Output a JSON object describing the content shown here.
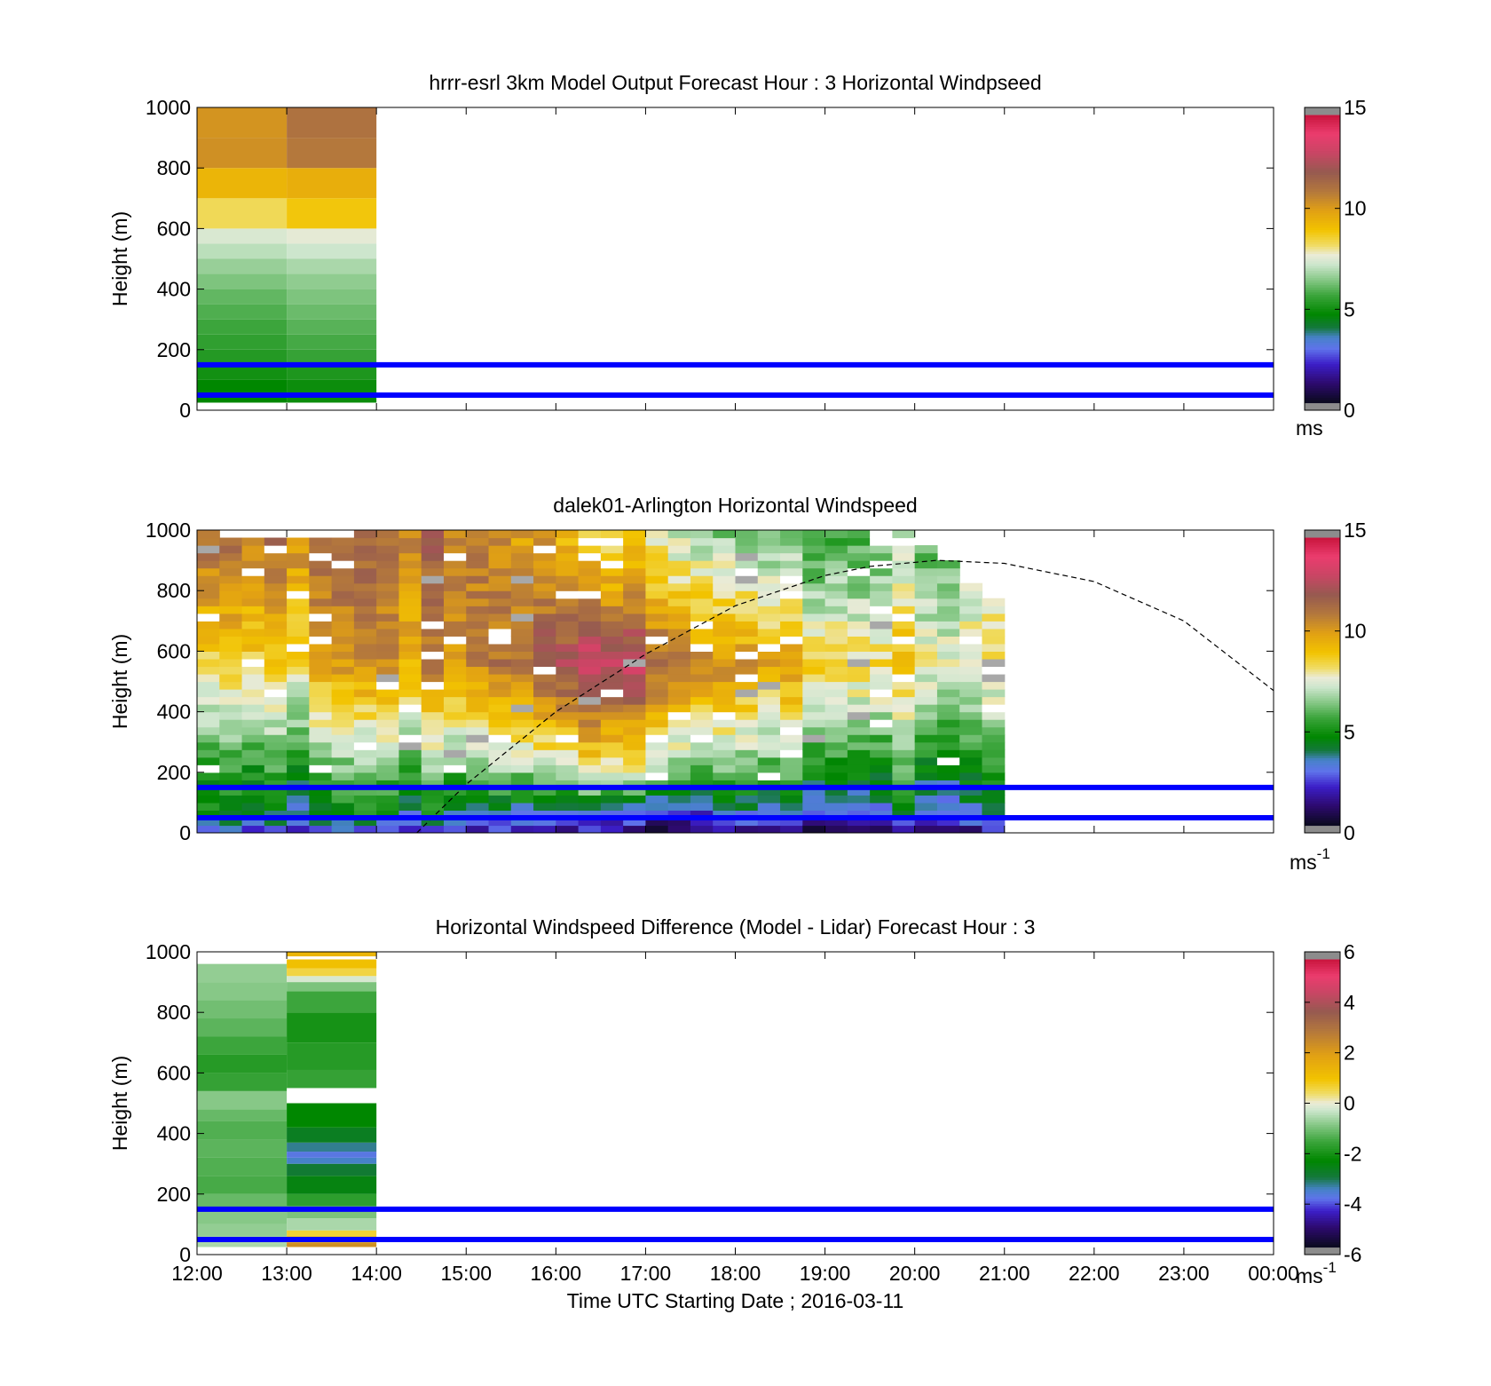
{
  "chart_data": [
    {
      "type": "heatmap",
      "title": "hrrr-esrl 3km Model Output   Forecast Hour : 3 Horizontal Windpseed",
      "ylabel": "Height (m)",
      "xlabel": "",
      "xlim_hours": [
        12,
        24
      ],
      "ylim": [
        0,
        1000
      ],
      "yticks": [
        0,
        200,
        400,
        600,
        800,
        1000
      ],
      "xtick_labels": [
        "12:00",
        "13:00",
        "14:00",
        "15:00",
        "16:00",
        "17:00",
        "18:00",
        "19:00",
        "20:00",
        "21:00",
        "22:00",
        "23:00",
        "00:00"
      ],
      "colorbar": {
        "min": 0,
        "max": 15,
        "ticks": [
          0,
          5,
          10,
          15
        ],
        "unit": "ms",
        "unit_sup": "",
        "colormap": "speed"
      },
      "reference_lines_m": [
        150,
        50
      ],
      "reference_line_color": "#0000ff",
      "columns": [
        {
          "t_start": 12,
          "t_end": 13,
          "bins": [
            {
              "z0": 25,
              "z1": 100,
              "v": 4.6
            },
            {
              "z0": 100,
              "z1": 150,
              "v": 4.9
            },
            {
              "z0": 150,
              "z1": 200,
              "v": 5.2
            },
            {
              "z0": 200,
              "z1": 250,
              "v": 5.4
            },
            {
              "z0": 250,
              "z1": 300,
              "v": 5.6
            },
            {
              "z0": 300,
              "z1": 350,
              "v": 5.8
            },
            {
              "z0": 350,
              "z1": 400,
              "v": 6.0
            },
            {
              "z0": 400,
              "z1": 450,
              "v": 6.3
            },
            {
              "z0": 450,
              "z1": 500,
              "v": 6.6
            },
            {
              "z0": 500,
              "z1": 550,
              "v": 7.0
            },
            {
              "z0": 550,
              "z1": 600,
              "v": 7.4
            },
            {
              "z0": 600,
              "z1": 700,
              "v": 8.3
            },
            {
              "z0": 700,
              "z1": 800,
              "v": 9.4
            },
            {
              "z0": 800,
              "z1": 900,
              "v": 10.4
            },
            {
              "z0": 900,
              "z1": 1000,
              "v": 10.3
            }
          ]
        },
        {
          "t_start": 13,
          "t_end": 14,
          "bins": [
            {
              "z0": 25,
              "z1": 100,
              "v": 4.8
            },
            {
              "z0": 100,
              "z1": 150,
              "v": 5.1
            },
            {
              "z0": 150,
              "z1": 200,
              "v": 5.5
            },
            {
              "z0": 200,
              "z1": 250,
              "v": 5.7
            },
            {
              "z0": 250,
              "z1": 300,
              "v": 5.9
            },
            {
              "z0": 300,
              "z1": 350,
              "v": 6.1
            },
            {
              "z0": 350,
              "z1": 400,
              "v": 6.3
            },
            {
              "z0": 400,
              "z1": 450,
              "v": 6.5
            },
            {
              "z0": 450,
              "z1": 500,
              "v": 6.8
            },
            {
              "z0": 500,
              "z1": 550,
              "v": 7.2
            },
            {
              "z0": 550,
              "z1": 600,
              "v": 7.6
            },
            {
              "z0": 600,
              "z1": 700,
              "v": 8.9
            },
            {
              "z0": 700,
              "z1": 800,
              "v": 9.6
            },
            {
              "z0": 800,
              "z1": 900,
              "v": 11.0
            },
            {
              "z0": 900,
              "z1": 1000,
              "v": 11.2
            }
          ]
        }
      ]
    },
    {
      "type": "heatmap",
      "title": "dalek01-Arlington  Horizontal Windspeed",
      "ylabel": "Height (m)",
      "xlabel": "",
      "xlim_hours": [
        12,
        24
      ],
      "ylim": [
        0,
        1000
      ],
      "yticks": [
        0,
        200,
        400,
        600,
        800,
        1000
      ],
      "xtick_labels": [
        "12:00",
        "13:00",
        "14:00",
        "15:00",
        "16:00",
        "17:00",
        "18:00",
        "19:00",
        "20:00",
        "21:00",
        "22:00",
        "23:00",
        "00:00"
      ],
      "colorbar": {
        "min": 0,
        "max": 15,
        "ticks": [
          0,
          5,
          10,
          15
        ],
        "unit": "ms",
        "unit_sup": "-1",
        "colormap": "speed"
      },
      "reference_lines_m": [
        150,
        50
      ],
      "reference_line_color": "#0000ff",
      "data_time_range_hours": [
        12,
        20.85
      ],
      "time_step_hours": 0.25,
      "gate_m": 25,
      "profile_hours": [
        12.0,
        13.0,
        14.0,
        15.0,
        16.0,
        16.5,
        17.0,
        18.0,
        19.0,
        20.0,
        20.85
      ],
      "profile_surface": [
        1.5,
        1.4,
        1.6,
        2.0,
        1.4,
        1.1,
        1.0,
        1.0,
        0.9,
        1.0,
        1.1
      ],
      "profile_jet": [
        3.8,
        3.7,
        4.0,
        4.2,
        3.0,
        2.6,
        2.5,
        2.8,
        3.0,
        3.2,
        3.4
      ],
      "profile_mid": [
        7.5,
        8.6,
        9.6,
        10.8,
        12.2,
        13.3,
        12.8,
        10.2,
        9.2,
        8.4,
        7.9
      ],
      "profile_top": [
        10.6,
        10.9,
        11.0,
        11.4,
        9.5,
        7.5,
        8.5,
        6.2,
        5.8,
        6.4,
        6.8
      ],
      "top_height_m": [
        980,
        960,
        980,
        990,
        990,
        990,
        1000,
        990,
        1000,
        980,
        760
      ],
      "sunset_curve": {
        "style": "dashed",
        "points": [
          [
            14.45,
            0
          ],
          [
            15.0,
            160
          ],
          [
            16.0,
            400
          ],
          [
            17.0,
            590
          ],
          [
            18.0,
            750
          ],
          [
            19.0,
            850
          ],
          [
            19.5,
            880
          ],
          [
            20.25,
            900
          ],
          [
            21.0,
            890
          ],
          [
            22.0,
            830
          ],
          [
            23.0,
            700
          ],
          [
            24.0,
            470
          ]
        ]
      }
    },
    {
      "type": "heatmap",
      "title": "Horizontal Windspeed Difference (Model - Lidar) Forecast Hour : 3",
      "ylabel": "Height (m)",
      "xlabel": "Time UTC  Starting Date ; 2016-03-11",
      "xlim_hours": [
        12,
        24
      ],
      "ylim": [
        0,
        1000
      ],
      "yticks": [
        0,
        200,
        400,
        600,
        800,
        1000
      ],
      "xtick_labels": [
        "12:00",
        "13:00",
        "14:00",
        "15:00",
        "16:00",
        "17:00",
        "18:00",
        "19:00",
        "20:00",
        "21:00",
        "22:00",
        "23:00",
        "00:00"
      ],
      "colorbar": {
        "min": -6,
        "max": 6,
        "ticks": [
          -6,
          -4,
          -2,
          0,
          2,
          4,
          6
        ],
        "unit": "ms",
        "unit_sup": "-1",
        "colormap": "diff"
      },
      "reference_lines_m": [
        150,
        50
      ],
      "reference_line_color": "#0000ff",
      "columns": [
        {
          "t_start": 12,
          "t_end": 13,
          "bins": [
            {
              "z0": 25,
              "z1": 60,
              "v": -0.6
            },
            {
              "z0": 60,
              "z1": 100,
              "v": -0.8
            },
            {
              "z0": 100,
              "z1": 140,
              "v": -0.9
            },
            {
              "z0": 140,
              "z1": 200,
              "v": -1.2
            },
            {
              "z0": 200,
              "z1": 260,
              "v": -1.5
            },
            {
              "z0": 260,
              "z1": 320,
              "v": -1.4
            },
            {
              "z0": 320,
              "z1": 380,
              "v": -1.3
            },
            {
              "z0": 380,
              "z1": 440,
              "v": -1.4
            },
            {
              "z0": 440,
              "z1": 480,
              "v": -1.2
            },
            {
              "z0": 480,
              "z1": 540,
              "v": -0.9
            },
            {
              "z0": 540,
              "z1": 600,
              "v": -1.7
            },
            {
              "z0": 600,
              "z1": 660,
              "v": -1.9
            },
            {
              "z0": 660,
              "z1": 720,
              "v": -1.6
            },
            {
              "z0": 720,
              "z1": 780,
              "v": -1.3
            },
            {
              "z0": 780,
              "z1": 840,
              "v": -1.1
            },
            {
              "z0": 840,
              "z1": 900,
              "v": -0.9
            },
            {
              "z0": 900,
              "z1": 960,
              "v": -0.8
            }
          ]
        },
        {
          "t_start": 13,
          "t_end": 14,
          "bins": [
            {
              "z0": 25,
              "z1": 40,
              "v": 2.4
            },
            {
              "z0": 40,
              "z1": 60,
              "v": 1.2
            },
            {
              "z0": 60,
              "z1": 80,
              "v": 0.7
            },
            {
              "z0": 80,
              "z1": 120,
              "v": -0.6
            },
            {
              "z0": 120,
              "z1": 160,
              "v": -1.0
            },
            {
              "z0": 160,
              "z1": 200,
              "v": -1.8
            },
            {
              "z0": 200,
              "z1": 260,
              "v": -2.6
            },
            {
              "z0": 260,
              "z1": 300,
              "v": -3.0
            },
            {
              "z0": 300,
              "z1": 320,
              "v": -3.6
            },
            {
              "z0": 320,
              "z1": 340,
              "v": -3.9
            },
            {
              "z0": 340,
              "z1": 370,
              "v": -3.4
            },
            {
              "z0": 370,
              "z1": 420,
              "v": -2.8
            },
            {
              "z0": 420,
              "z1": 500,
              "v": -2.4
            },
            {
              "z0": 550,
              "z1": 610,
              "v": -1.7
            },
            {
              "z0": 610,
              "z1": 700,
              "v": -1.9
            },
            {
              "z0": 700,
              "z1": 800,
              "v": -2.1
            },
            {
              "z0": 800,
              "z1": 870,
              "v": -1.6
            },
            {
              "z0": 870,
              "z1": 900,
              "v": -1.0
            },
            {
              "z0": 900,
              "z1": 920,
              "v": -0.2
            },
            {
              "z0": 920,
              "z1": 945,
              "v": 0.6
            },
            {
              "z0": 945,
              "z1": 975,
              "v": 1.1
            },
            {
              "z0": 985,
              "z1": 1000,
              "v": 1.4
            }
          ]
        }
      ]
    }
  ]
}
